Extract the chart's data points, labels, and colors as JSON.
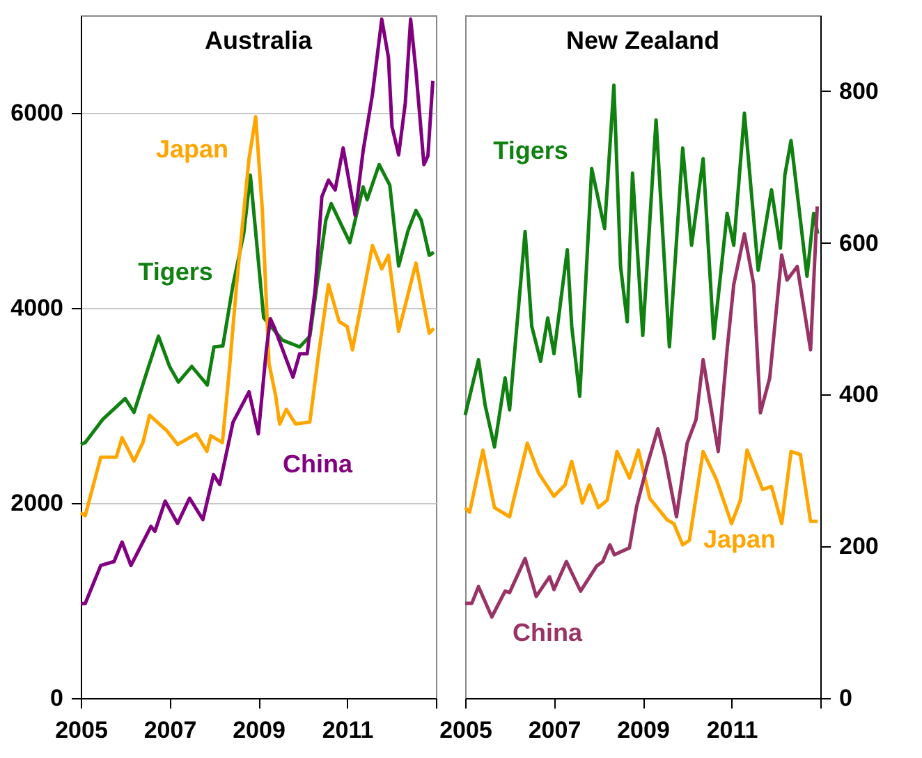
{
  "chart_data": [
    {
      "type": "line",
      "title": "Australia",
      "xlim": [
        2005,
        2013
      ],
      "xticks": [
        2005,
        2007,
        2009,
        2011,
        {
          "value": 2013,
          "label": null
        }
      ],
      "ylim": [
        0,
        7000
      ],
      "yticks": [
        0,
        2000,
        4000,
        6000
      ],
      "grid": "y",
      "marker": "none",
      "line_style": "solid",
      "series": [
        {
          "name": "Tigers",
          "color": "#108010",
          "x": [
            2005.0,
            2005.1,
            2005.5,
            2006.0,
            2006.2,
            2006.5,
            2006.75,
            2007.0,
            2007.2,
            2007.5,
            2007.85,
            2008.0,
            2008.2,
            2008.43,
            2008.67,
            2008.82,
            2009.12,
            2009.54,
            2009.93,
            2010.16,
            2010.52,
            2010.64,
            2011.06,
            2011.36,
            2011.45,
            2011.72,
            2011.96,
            2012.16,
            2012.37,
            2012.55,
            2012.67,
            2012.85,
            2012.95
          ],
          "values": [
            2600,
            2620,
            2860,
            3070,
            2930,
            3360,
            3710,
            3400,
            3240,
            3400,
            3210,
            3600,
            3610,
            4240,
            4760,
            5360,
            3900,
            3670,
            3600,
            3710,
            4900,
            5070,
            4670,
            5240,
            5110,
            5470,
            5260,
            4430,
            4790,
            5000,
            4900,
            4540,
            4570
          ]
        },
        {
          "name": "Japan",
          "color": "#ffa500",
          "x": [
            2005.0,
            2005.1,
            2005.45,
            2005.8,
            2005.93,
            2006.2,
            2006.4,
            2006.55,
            2006.94,
            2007.18,
            2007.6,
            2007.84,
            2007.93,
            2008.19,
            2008.34,
            2008.52,
            2008.79,
            2008.94,
            2009.09,
            2009.24,
            2009.39,
            2009.48,
            2009.63,
            2009.84,
            2010.16,
            2010.37,
            2010.58,
            2010.82,
            2011.0,
            2011.12,
            2011.57,
            2011.78,
            2011.93,
            2012.16,
            2012.55,
            2012.85,
            2012.95
          ],
          "values": [
            1900,
            1870,
            2470,
            2470,
            2670,
            2430,
            2620,
            2900,
            2740,
            2600,
            2710,
            2530,
            2690,
            2620,
            3330,
            4290,
            5530,
            5960,
            5000,
            3430,
            3100,
            2810,
            2960,
            2810,
            2830,
            3570,
            4240,
            3860,
            3810,
            3570,
            4640,
            4400,
            4540,
            3760,
            4460,
            3740,
            3790
          ]
        },
        {
          "name": "China",
          "color": "#800080",
          "x": [
            2005.0,
            2005.1,
            2005.45,
            2005.75,
            2005.93,
            2006.13,
            2006.58,
            2006.67,
            2006.9,
            2007.18,
            2007.45,
            2007.75,
            2007.99,
            2008.13,
            2008.43,
            2008.79,
            2009.0,
            2009.18,
            2009.27,
            2009.36,
            2009.78,
            2009.93,
            2010.1,
            2010.28,
            2010.43,
            2010.58,
            2010.73,
            2010.91,
            2011.18,
            2011.36,
            2011.57,
            2011.78,
            2011.93,
            2012.01,
            2012.16,
            2012.31,
            2012.43,
            2012.55,
            2012.73,
            2012.82,
            2012.93
          ],
          "values": [
            970,
            970,
            1360,
            1400,
            1600,
            1360,
            1760,
            1710,
            2020,
            1790,
            2050,
            1830,
            2290,
            2190,
            2830,
            3140,
            2710,
            3570,
            3890,
            3800,
            3290,
            3530,
            3530,
            4190,
            5140,
            5310,
            5210,
            5640,
            4950,
            5610,
            6190,
            6960,
            6570,
            5860,
            5570,
            6100,
            6960,
            6430,
            5470,
            5560,
            6330
          ]
        }
      ]
    },
    {
      "type": "line",
      "title": "New Zealand",
      "xlim": [
        2005,
        2013
      ],
      "xticks": [
        2005,
        2007,
        2009,
        2011,
        {
          "value": 2013,
          "label": null
        }
      ],
      "ylim": [
        0,
        900
      ],
      "yticks": [
        0,
        200,
        400,
        600,
        800
      ],
      "marker": "none",
      "line_style": "solid",
      "series": [
        {
          "name": "Tigers",
          "color": "#108010",
          "x": [
            2005.0,
            2005.3,
            2005.45,
            2005.66,
            2005.9,
            2006.0,
            2006.35,
            2006.5,
            2006.7,
            2006.86,
            2007.0,
            2007.3,
            2007.4,
            2007.58,
            2007.85,
            2008.14,
            2008.35,
            2008.5,
            2008.65,
            2008.77,
            2009.0,
            2009.3,
            2009.6,
            2009.9,
            2010.1,
            2010.36,
            2010.6,
            2010.9,
            2011.05,
            2011.29,
            2011.6,
            2011.9,
            2012.1,
            2012.2,
            2012.34,
            2012.7,
            2012.85,
            2012.94
          ],
          "values": [
            373,
            446,
            386,
            331,
            422,
            380,
            615,
            490,
            444,
            501,
            454,
            591,
            490,
            398,
            698,
            619,
            808,
            569,
            496,
            692,
            478,
            762,
            463,
            725,
            597,
            711,
            474,
            639,
            597,
            771,
            564,
            670,
            593,
            689,
            735,
            556,
            639,
            612
          ]
        },
        {
          "name": "Japan",
          "color": "#ffa500",
          "x": [
            2005.0,
            2005.1,
            2005.4,
            2005.66,
            2006.0,
            2006.4,
            2006.65,
            2007.0,
            2007.25,
            2007.4,
            2007.64,
            2007.8,
            2008.0,
            2008.2,
            2008.42,
            2008.55,
            2008.7,
            2008.9,
            2009.16,
            2009.55,
            2009.7,
            2009.9,
            2010.05,
            2010.36,
            2010.66,
            2011.0,
            2011.2,
            2011.35,
            2011.7,
            2011.9,
            2012.13,
            2012.34,
            2012.55,
            2012.78,
            2012.94
          ],
          "values": [
            251,
            245,
            327,
            251,
            239,
            336,
            297,
            266,
            281,
            312,
            257,
            281,
            251,
            261,
            325,
            309,
            290,
            327,
            263,
            235,
            230,
            202,
            208,
            325,
            288,
            230,
            261,
            327,
            275,
            279,
            230,
            325,
            321,
            233,
            233
          ]
        },
        {
          "name": "China",
          "color": "#993366",
          "x": [
            2005.0,
            2005.15,
            2005.3,
            2005.6,
            2005.9,
            2006.0,
            2006.35,
            2006.6,
            2006.9,
            2007.0,
            2007.28,
            2007.6,
            2007.96,
            2008.1,
            2008.26,
            2008.36,
            2008.7,
            2008.86,
            2009.1,
            2009.34,
            2009.5,
            2009.76,
            2010.0,
            2010.2,
            2010.36,
            2010.7,
            2010.9,
            2011.05,
            2011.29,
            2011.5,
            2011.65,
            2011.86,
            2012.13,
            2012.25,
            2012.48,
            2012.78,
            2012.93
          ],
          "values": [
            125,
            125,
            147,
            107,
            141,
            139,
            184,
            134,
            160,
            143,
            180,
            141,
            174,
            180,
            202,
            189,
            198,
            252,
            307,
            355,
            318,
            239,
            336,
            367,
            446,
            325,
            459,
            545,
            612,
            545,
            376,
            422,
            584,
            551,
            569,
            459,
            648
          ]
        }
      ]
    }
  ]
}
